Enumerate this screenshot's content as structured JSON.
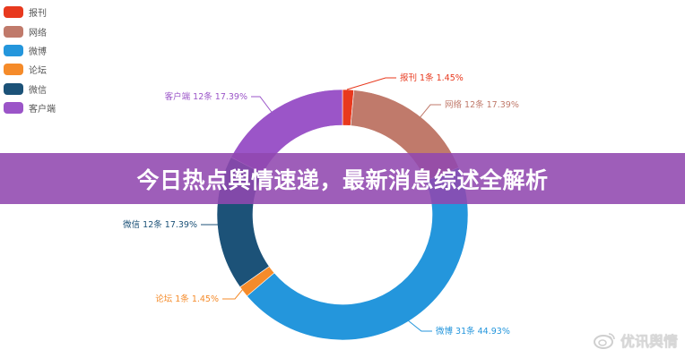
{
  "legend": {
    "items": [
      {
        "label": "报刊",
        "color": "#e8391e"
      },
      {
        "label": "网络",
        "color": "#c07a6b"
      },
      {
        "label": "微博",
        "color": "#2496dc"
      },
      {
        "label": "论坛",
        "color": "#f58b2a"
      },
      {
        "label": "微信",
        "color": "#1c5278"
      },
      {
        "label": "客户端",
        "color": "#9b55c8"
      }
    ]
  },
  "labels": {
    "baokan": "报刊 1条  1.45%",
    "wangluo": "网络 12条  17.39%",
    "weibo": "微博 31条  44.93%",
    "luntan": "论坛 1条  1.45%",
    "weixin": "微信 12条  17.39%",
    "kehuduan": "客户端 12条  17.39%"
  },
  "banner": {
    "title": "今日热点舆情速递，最新消息综述全解析"
  },
  "watermark": {
    "text": "优讯舆情"
  },
  "chart_data": {
    "type": "pie",
    "subtype": "donut",
    "title": "",
    "categories": [
      "报刊",
      "网络",
      "微博",
      "论坛",
      "微信",
      "客户端"
    ],
    "values": [
      1,
      12,
      31,
      1,
      12,
      12
    ],
    "percentages": [
      1.45,
      17.39,
      44.93,
      1.45,
      17.39,
      17.39
    ],
    "unit": "条",
    "colors": [
      "#e8391e",
      "#c07a6b",
      "#2496dc",
      "#f58b2a",
      "#1c5278",
      "#9b55c8"
    ],
    "legend_position": "top-left",
    "start_angle": "12 o'clock, clockwise"
  }
}
